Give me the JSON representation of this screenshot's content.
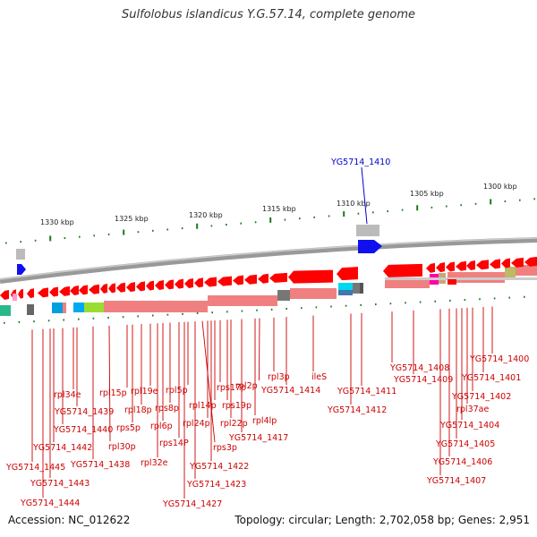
{
  "title": "Sulfolobus islandicus Y.G.57.14, complete genome",
  "footer": {
    "accession": "Accession: NC_012622",
    "summary": "Topology: circular; Length: 2,702,058 bp; Genes: 2,951"
  },
  "scale_labels": [
    "1330 kbp",
    "1325 kbp",
    "1320 kbp",
    "1315 kbp",
    "1310 kbp",
    "1305 kbp",
    "1300 kbp"
  ],
  "forward_gene_label": "YG5714_1410",
  "gene_labels": [
    "YG5714_1400",
    "YG5714_1401",
    "YG5714_1402",
    "rpl37ae",
    "YG5714_1404",
    "YG5714_1405",
    "YG5714_1406",
    "YG5714_1407",
    "YG5714_1408",
    "YG5714_1409",
    "YG5714_1411",
    "YG5714_1412",
    "ileS",
    "YG5714_1414",
    "rpl3p",
    "rpl2p",
    "rpl4lp",
    "YG5714_1417",
    "rpl22p",
    "rps19p",
    "rps17p",
    "rpl14p",
    "rpl24p",
    "YG5714_1422",
    "rps3p",
    "YG5714_1423",
    "rpl5p",
    "rps14P",
    "YG5714_1427",
    "rps8p",
    "rpl6p",
    "rpl32e",
    "rpl19e",
    "rpl18p",
    "rpl15p",
    "rps5p",
    "rpl30p",
    "YG5714_1438",
    "rpl34e",
    "YG5714_1439",
    "YG5714_1440",
    "YG5714_1442",
    "YG5714_1443",
    "YG5714_1445",
    "YG5714_1444"
  ],
  "colors": {
    "gene": "#ff0000",
    "gene_label": "#cc0000",
    "forward_gene": "#0000ee",
    "backbone": "#888888",
    "tick": "#1a7a1a"
  }
}
